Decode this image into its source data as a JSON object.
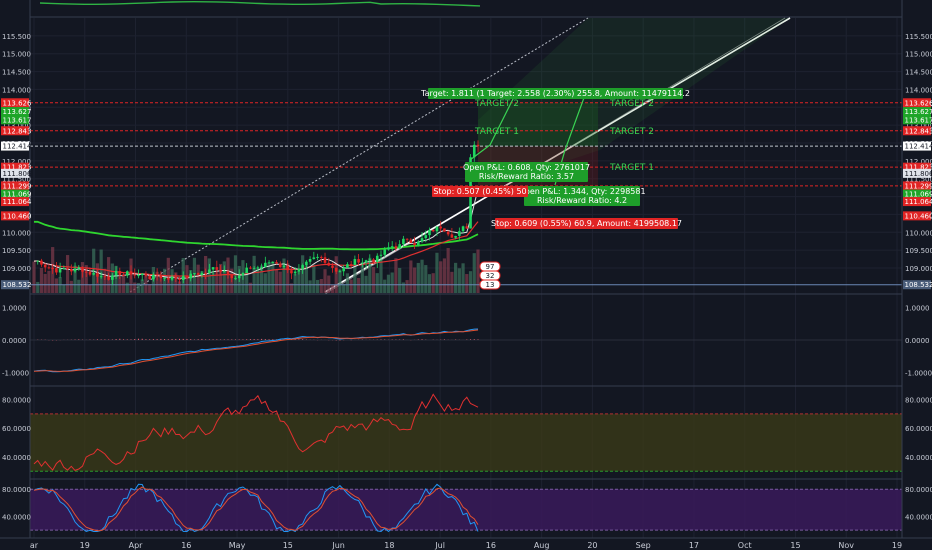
{
  "chart_data": {
    "type": "candlestick",
    "x_labels": [
      "ar",
      "19",
      "Apr",
      "16",
      "May",
      "15",
      "Jun",
      "18",
      "Jul",
      "16",
      "Aug",
      "20",
      "Sep",
      "17",
      "Oct",
      "15",
      "Nov",
      "19"
    ],
    "price_axis": {
      "range": [
        108.3,
        116.0
      ],
      "ticks": [
        "115.500",
        "115.000",
        "114.500",
        "114.000",
        "113.500",
        "113.000",
        "112.500",
        "112.000",
        "111.500",
        "111.000",
        "110.500",
        "110.000",
        "109.500",
        "109.000"
      ],
      "badges_left": [
        {
          "label": "113.626",
          "value": 113.626,
          "color": "#e02424"
        },
        {
          "label": "113.627",
          "value": 113.38,
          "color": "#1ea529"
        },
        {
          "label": "113.617",
          "value": 113.15,
          "color": "#1ea529"
        },
        {
          "label": "112.843",
          "value": 112.843,
          "color": "#e02424"
        },
        {
          "label": "112.414",
          "value": 112.414,
          "color": "#ffffff"
        },
        {
          "label": "111.823",
          "value": 111.823,
          "color": "#e02424"
        },
        {
          "label": "111.806",
          "value": 111.65,
          "color": "#dfe3ea"
        },
        {
          "label": "111.299",
          "value": 111.299,
          "color": "#e02424"
        },
        {
          "label": "111.069",
          "value": 111.069,
          "color": "#1ea529"
        },
        {
          "label": "111.064",
          "value": 110.86,
          "color": "#e02424"
        },
        {
          "label": "110.460",
          "value": 110.46,
          "color": "#e02424"
        },
        {
          "label": "108.532",
          "value": 108.532,
          "color": "#4a5d7a"
        }
      ],
      "badges_right": [
        {
          "label": "113.626",
          "value": 113.626,
          "color": "#e02424"
        },
        {
          "label": "113.627",
          "value": 113.38,
          "color": "#1ea529"
        },
        {
          "label": "113.617",
          "value": 113.15,
          "color": "#1ea529"
        },
        {
          "label": "112.843",
          "value": 112.843,
          "color": "#e02424"
        },
        {
          "label": "112.414",
          "value": 112.414,
          "color": "#ffffff"
        },
        {
          "label": "111.823",
          "value": 111.823,
          "color": "#e02424"
        },
        {
          "label": "111.806",
          "value": 111.65,
          "color": "#dfe3ea"
        },
        {
          "label": "111.299",
          "value": 111.299,
          "color": "#e02424"
        },
        {
          "label": "111.069",
          "value": 111.069,
          "color": "#1ea529"
        },
        {
          "label": "111.064",
          "value": 110.86,
          "color": "#e02424"
        },
        {
          "label": "110.460",
          "value": 110.46,
          "color": "#e02424"
        },
        {
          "label": "108.532",
          "value": 108.532,
          "color": "#4a5d7a"
        }
      ]
    },
    "hlines": [
      {
        "value": 113.626,
        "color": "#e02424"
      },
      {
        "value": 112.843,
        "color": "#e02424"
      },
      {
        "value": 111.823,
        "color": "#e02424"
      },
      {
        "value": 111.299,
        "color": "#e02424"
      },
      {
        "value": 112.414,
        "color": "#bfc4cc"
      },
      {
        "value": 108.532,
        "color": "#6a87b5"
      }
    ],
    "targets": [
      {
        "label": "TARGET 1",
        "value": 112.843,
        "side": "left"
      },
      {
        "label": "TARGET 2",
        "value": 113.626,
        "side": "left"
      },
      {
        "label": "TARGET 2",
        "value": 113.626,
        "side": "right"
      },
      {
        "label": "TARGET 2",
        "value": 112.843,
        "side": "right"
      },
      {
        "label": "TARGET 1",
        "value": 111.823,
        "side": "right"
      }
    ],
    "annotations": [
      {
        "text": "Target: 1.811 (1",
        "kind": "green"
      },
      {
        "text": "Target: 2.558 (2.30%) 255.8, Amount: 11479114.2",
        "kind": "green"
      },
      {
        "text": "Open P&L: 0.608, Qty: 2761017",
        "kind": "green"
      },
      {
        "text": "Risk/Reward Ratio: 3.57",
        "kind": "green"
      },
      {
        "text": "Open P&L: 1.344, Qty: 2298581",
        "kind": "green"
      },
      {
        "text": "Risk/Reward Ratio: 4.2",
        "kind": "green"
      },
      {
        "text": "Stop: 0.507 (0.45%) 50",
        "kind": "red"
      },
      {
        "text": "Stop: 0.609 (0.55%) 60.9, Amount: 4199508.17",
        "kind": "red"
      }
    ],
    "badges_misc": [
      "97",
      "32",
      "13"
    ],
    "macd": {
      "ticks": [
        "1.0000",
        "0.0000",
        "-1.0000"
      ]
    },
    "rsi": {
      "ticks": [
        "80.0000",
        "60.0000",
        "40.0000"
      ]
    },
    "stoch": {
      "ticks": [
        "80.0000",
        "40.0000"
      ]
    }
  }
}
